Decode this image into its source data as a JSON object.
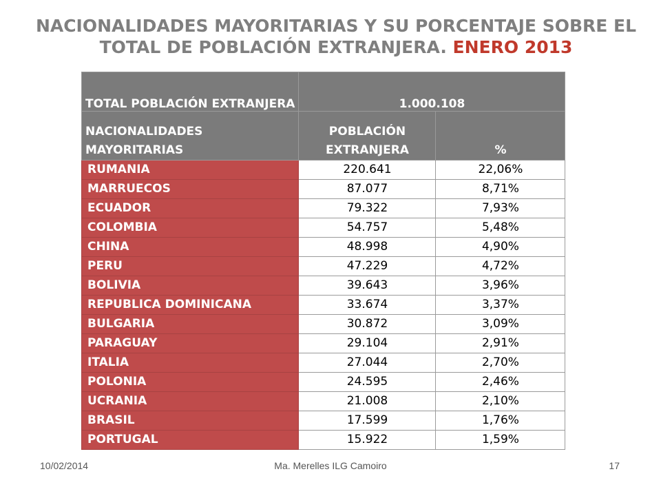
{
  "title": {
    "line1": "NACIONALIDADES MAYORITARIAS Y SU PORCENTAJE SOBRE EL",
    "line2": "TOTAL DE POBLACIÓN EXTRANJERA.",
    "highlight": "ENERO 2013"
  },
  "footer": {
    "date": "10/02/2014",
    "center": "Ma. Merelles ILG Camoiro",
    "page": "17"
  },
  "colors": {
    "header_bg": "#7b7b7b",
    "country_bg": "#bf4b4b",
    "title_gray": "#7f7f7f",
    "title_red": "#c0392b"
  },
  "chart_data": {
    "type": "table",
    "total_label": "TOTAL POBLACIÓN EXTRANJERA",
    "total_value": "1.000.108",
    "columns": [
      "NACIONALIDADES MAYORITARIAS",
      "POBLACIÓN EXTRANJERA",
      "%"
    ],
    "rows": [
      {
        "country": "RUMANIA",
        "population": "220.641",
        "percent": "22,06%"
      },
      {
        "country": "MARRUECOS",
        "population": "87.077",
        "percent": "8,71%"
      },
      {
        "country": "ECUADOR",
        "population": "79.322",
        "percent": "7,93%"
      },
      {
        "country": "COLOMBIA",
        "population": "54.757",
        "percent": "5,48%"
      },
      {
        "country": "CHINA",
        "population": "48.998",
        "percent": "4,90%"
      },
      {
        "country": "PERU",
        "population": "47.229",
        "percent": "4,72%"
      },
      {
        "country": "BOLIVIA",
        "population": "39.643",
        "percent": "3,96%"
      },
      {
        "country": "REPUBLICA DOMINICANA",
        "population": "33.674",
        "percent": "3,37%"
      },
      {
        "country": "BULGARIA",
        "population": "30.872",
        "percent": "3,09%"
      },
      {
        "country": "PARAGUAY",
        "population": "29.104",
        "percent": "2,91%"
      },
      {
        "country": "ITALIA",
        "population": "27.044",
        "percent": "2,70%"
      },
      {
        "country": "POLONIA",
        "population": "24.595",
        "percent": "2,46%"
      },
      {
        "country": "UCRANIA",
        "population": "21.008",
        "percent": "2,10%"
      },
      {
        "country": "BRASIL",
        "population": "17.599",
        "percent": "1,76%"
      },
      {
        "country": "PORTUGAL",
        "population": "15.922",
        "percent": "1,59%"
      }
    ]
  }
}
